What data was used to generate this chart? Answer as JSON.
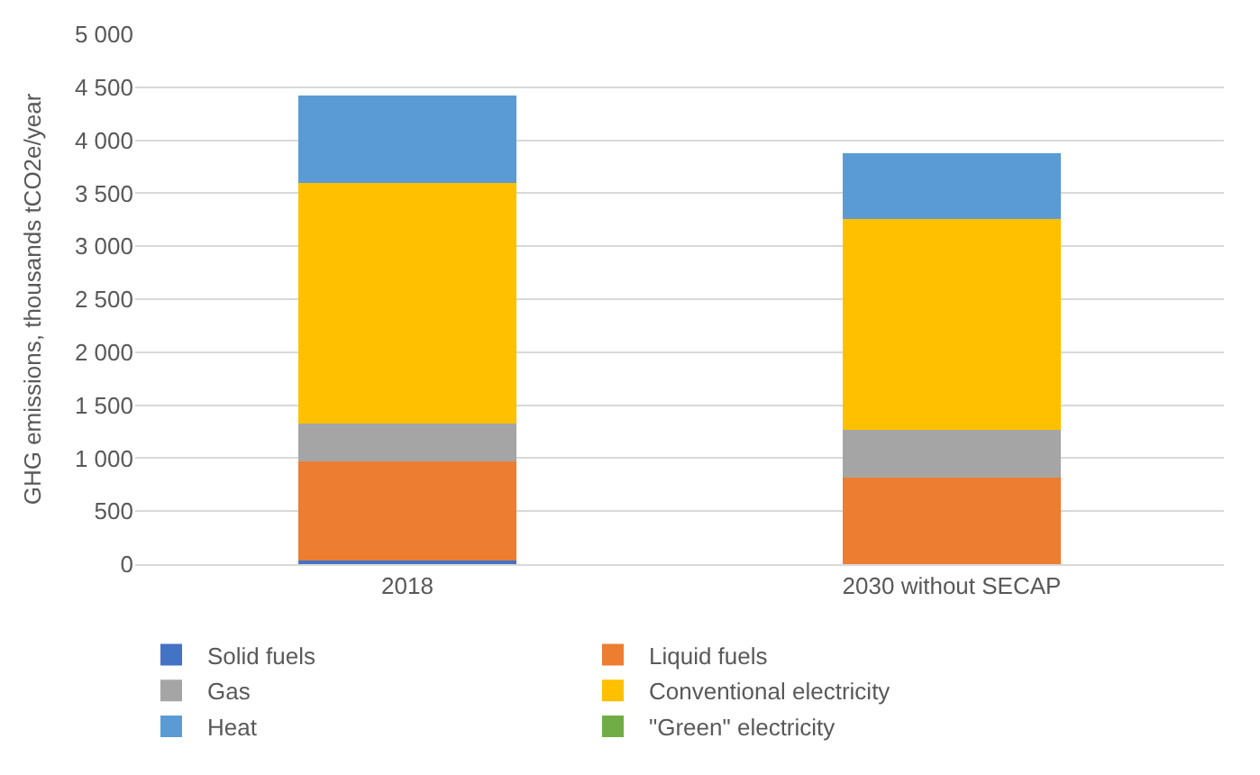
{
  "chart_data": {
    "type": "bar",
    "stacked": true,
    "ylabel": "GHG emissions, thousands tCO2e/year",
    "categories": [
      "2018",
      "2030 without SECAP"
    ],
    "series": [
      {
        "name": "Solid fuels",
        "color": "#4472c4",
        "values": [
          30,
          0
        ]
      },
      {
        "name": "Liquid fuels",
        "color": "#ed7d31",
        "values": [
          940,
          820
        ]
      },
      {
        "name": "Gas",
        "color": "#a5a5a5",
        "values": [
          360,
          450
        ]
      },
      {
        "name": "Conventional electricity",
        "color": "#ffc000",
        "values": [
          2270,
          1990
        ]
      },
      {
        "name": "Heat",
        "color": "#5b9bd5",
        "values": [
          820,
          615
        ]
      },
      {
        "name": "\"Green\" electricity",
        "color": "#70ad47",
        "values": [
          0,
          0
        ]
      }
    ],
    "ylim": [
      0,
      5000
    ],
    "yticks": [
      {
        "value": 0,
        "label": "0"
      },
      {
        "value": 500,
        "label": "500"
      },
      {
        "value": 1000,
        "label": "1 000"
      },
      {
        "value": 1500,
        "label": "1 500"
      },
      {
        "value": 2000,
        "label": "2 000"
      },
      {
        "value": 2500,
        "label": "2 500"
      },
      {
        "value": 3000,
        "label": "3 000"
      },
      {
        "value": 3500,
        "label": "3 500"
      },
      {
        "value": 4000,
        "label": "4 000"
      },
      {
        "value": 4500,
        "label": "4 500"
      },
      {
        "value": 5000,
        "label": "5 000"
      }
    ],
    "grid": "y",
    "legend": "bottom"
  }
}
